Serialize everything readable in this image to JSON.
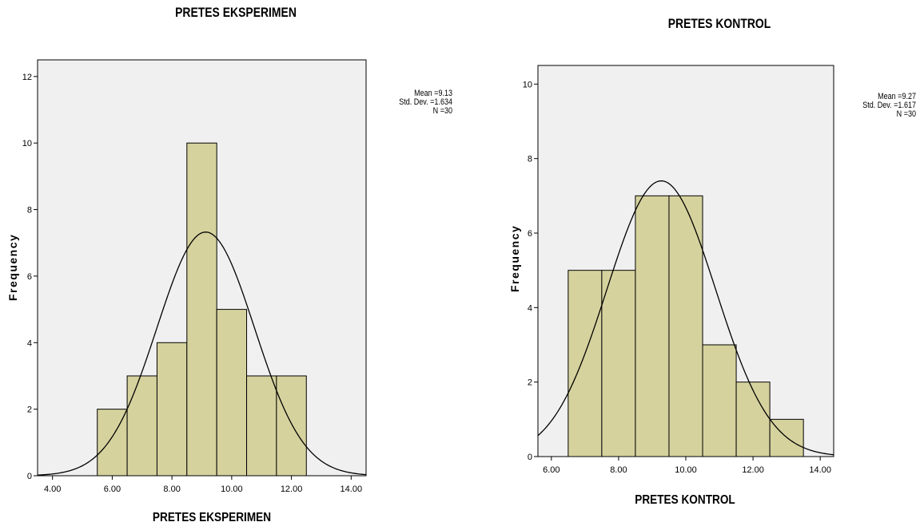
{
  "chart_data": [
    {
      "type": "bar",
      "title": "PRETES EKSPERIMEN",
      "xlabel": "PRETES EKSPERIMEN",
      "ylabel": "Frequency",
      "x_ticks": [
        "4.00",
        "6.00",
        "8.00",
        "10.00",
        "12.00",
        "14.00"
      ],
      "y_ticks": [
        "0",
        "2",
        "4",
        "6",
        "8",
        "10",
        "12"
      ],
      "xlim": [
        3.5,
        14.5
      ],
      "ylim": [
        0,
        12.5
      ],
      "bins": [
        {
          "center": 6,
          "count": 2
        },
        {
          "center": 7,
          "count": 3
        },
        {
          "center": 8,
          "count": 4
        },
        {
          "center": 9,
          "count": 10
        },
        {
          "center": 10,
          "count": 5
        },
        {
          "center": 11,
          "count": 3
        },
        {
          "center": 12,
          "count": 3
        }
      ],
      "bin_width": 1,
      "normal_curve": {
        "mean": 9.13,
        "sd": 1.634,
        "n": 30
      },
      "stats": [
        "Mean =9.13",
        "Std. Dev. =1.634",
        "N =30"
      ],
      "colors": {
        "bar": "#d6d29e",
        "plot_bg": "#f0f0f0"
      }
    },
    {
      "type": "bar",
      "title": "PRETES KONTROL",
      "xlabel": "PRETES KONTROL",
      "ylabel": "Frequency",
      "x_ticks": [
        "6.00",
        "8.00",
        "10.00",
        "12.00",
        "14.00"
      ],
      "y_ticks": [
        "0",
        "2",
        "4",
        "6",
        "8",
        "10"
      ],
      "xlim": [
        5.6,
        14.4
      ],
      "ylim": [
        0,
        10.5
      ],
      "bins": [
        {
          "center": 7,
          "count": 5
        },
        {
          "center": 8,
          "count": 5
        },
        {
          "center": 9,
          "count": 7
        },
        {
          "center": 10,
          "count": 7
        },
        {
          "center": 11,
          "count": 3
        },
        {
          "center": 12,
          "count": 2
        },
        {
          "center": 13,
          "count": 1
        }
      ],
      "bin_width": 1,
      "normal_curve": {
        "mean": 9.27,
        "sd": 1.617,
        "n": 30
      },
      "stats": [
        "Mean =9.27",
        "Std. Dev. =1.617",
        "N =30"
      ],
      "colors": {
        "bar": "#d6d29e",
        "plot_bg": "#f0f0f0"
      }
    }
  ]
}
